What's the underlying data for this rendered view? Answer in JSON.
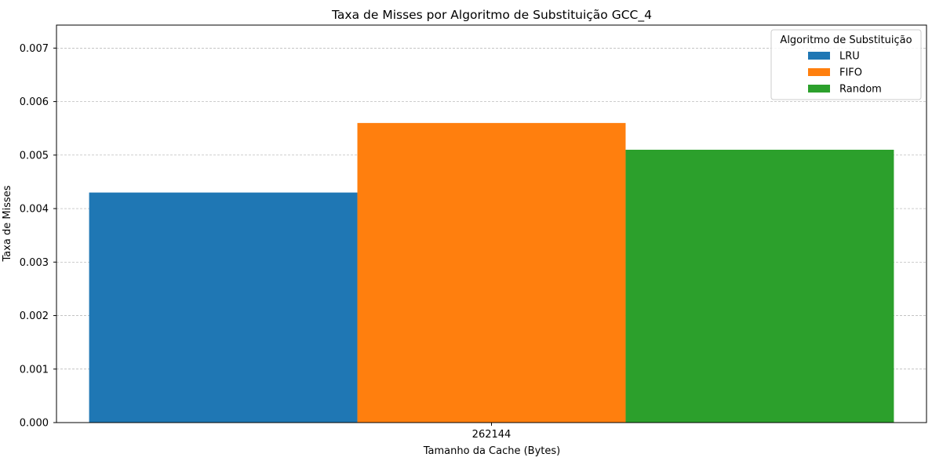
{
  "chart_data": {
    "type": "bar",
    "title": "Taxa de Misses por Algoritmo de Substituição GCC_4",
    "xlabel": "Tamanho da Cache (Bytes)",
    "ylabel": "Taxa de Misses",
    "categories": [
      "262144"
    ],
    "series": [
      {
        "name": "LRU",
        "color": "#1f77b4",
        "values": [
          0.0043
        ]
      },
      {
        "name": "FIFO",
        "color": "#ff7f0e",
        "values": [
          0.0056
        ]
      },
      {
        "name": "Random",
        "color": "#2ca02c",
        "values": [
          0.0051
        ]
      }
    ],
    "ylim": [
      0,
      0.00743
    ],
    "yticks": [
      "0.000",
      "0.001",
      "0.002",
      "0.003",
      "0.004",
      "0.005",
      "0.006",
      "0.007"
    ],
    "grid": "horizontal dashed",
    "legend": {
      "title": "Algoritmo de Substituição",
      "placement": "top-right"
    }
  }
}
